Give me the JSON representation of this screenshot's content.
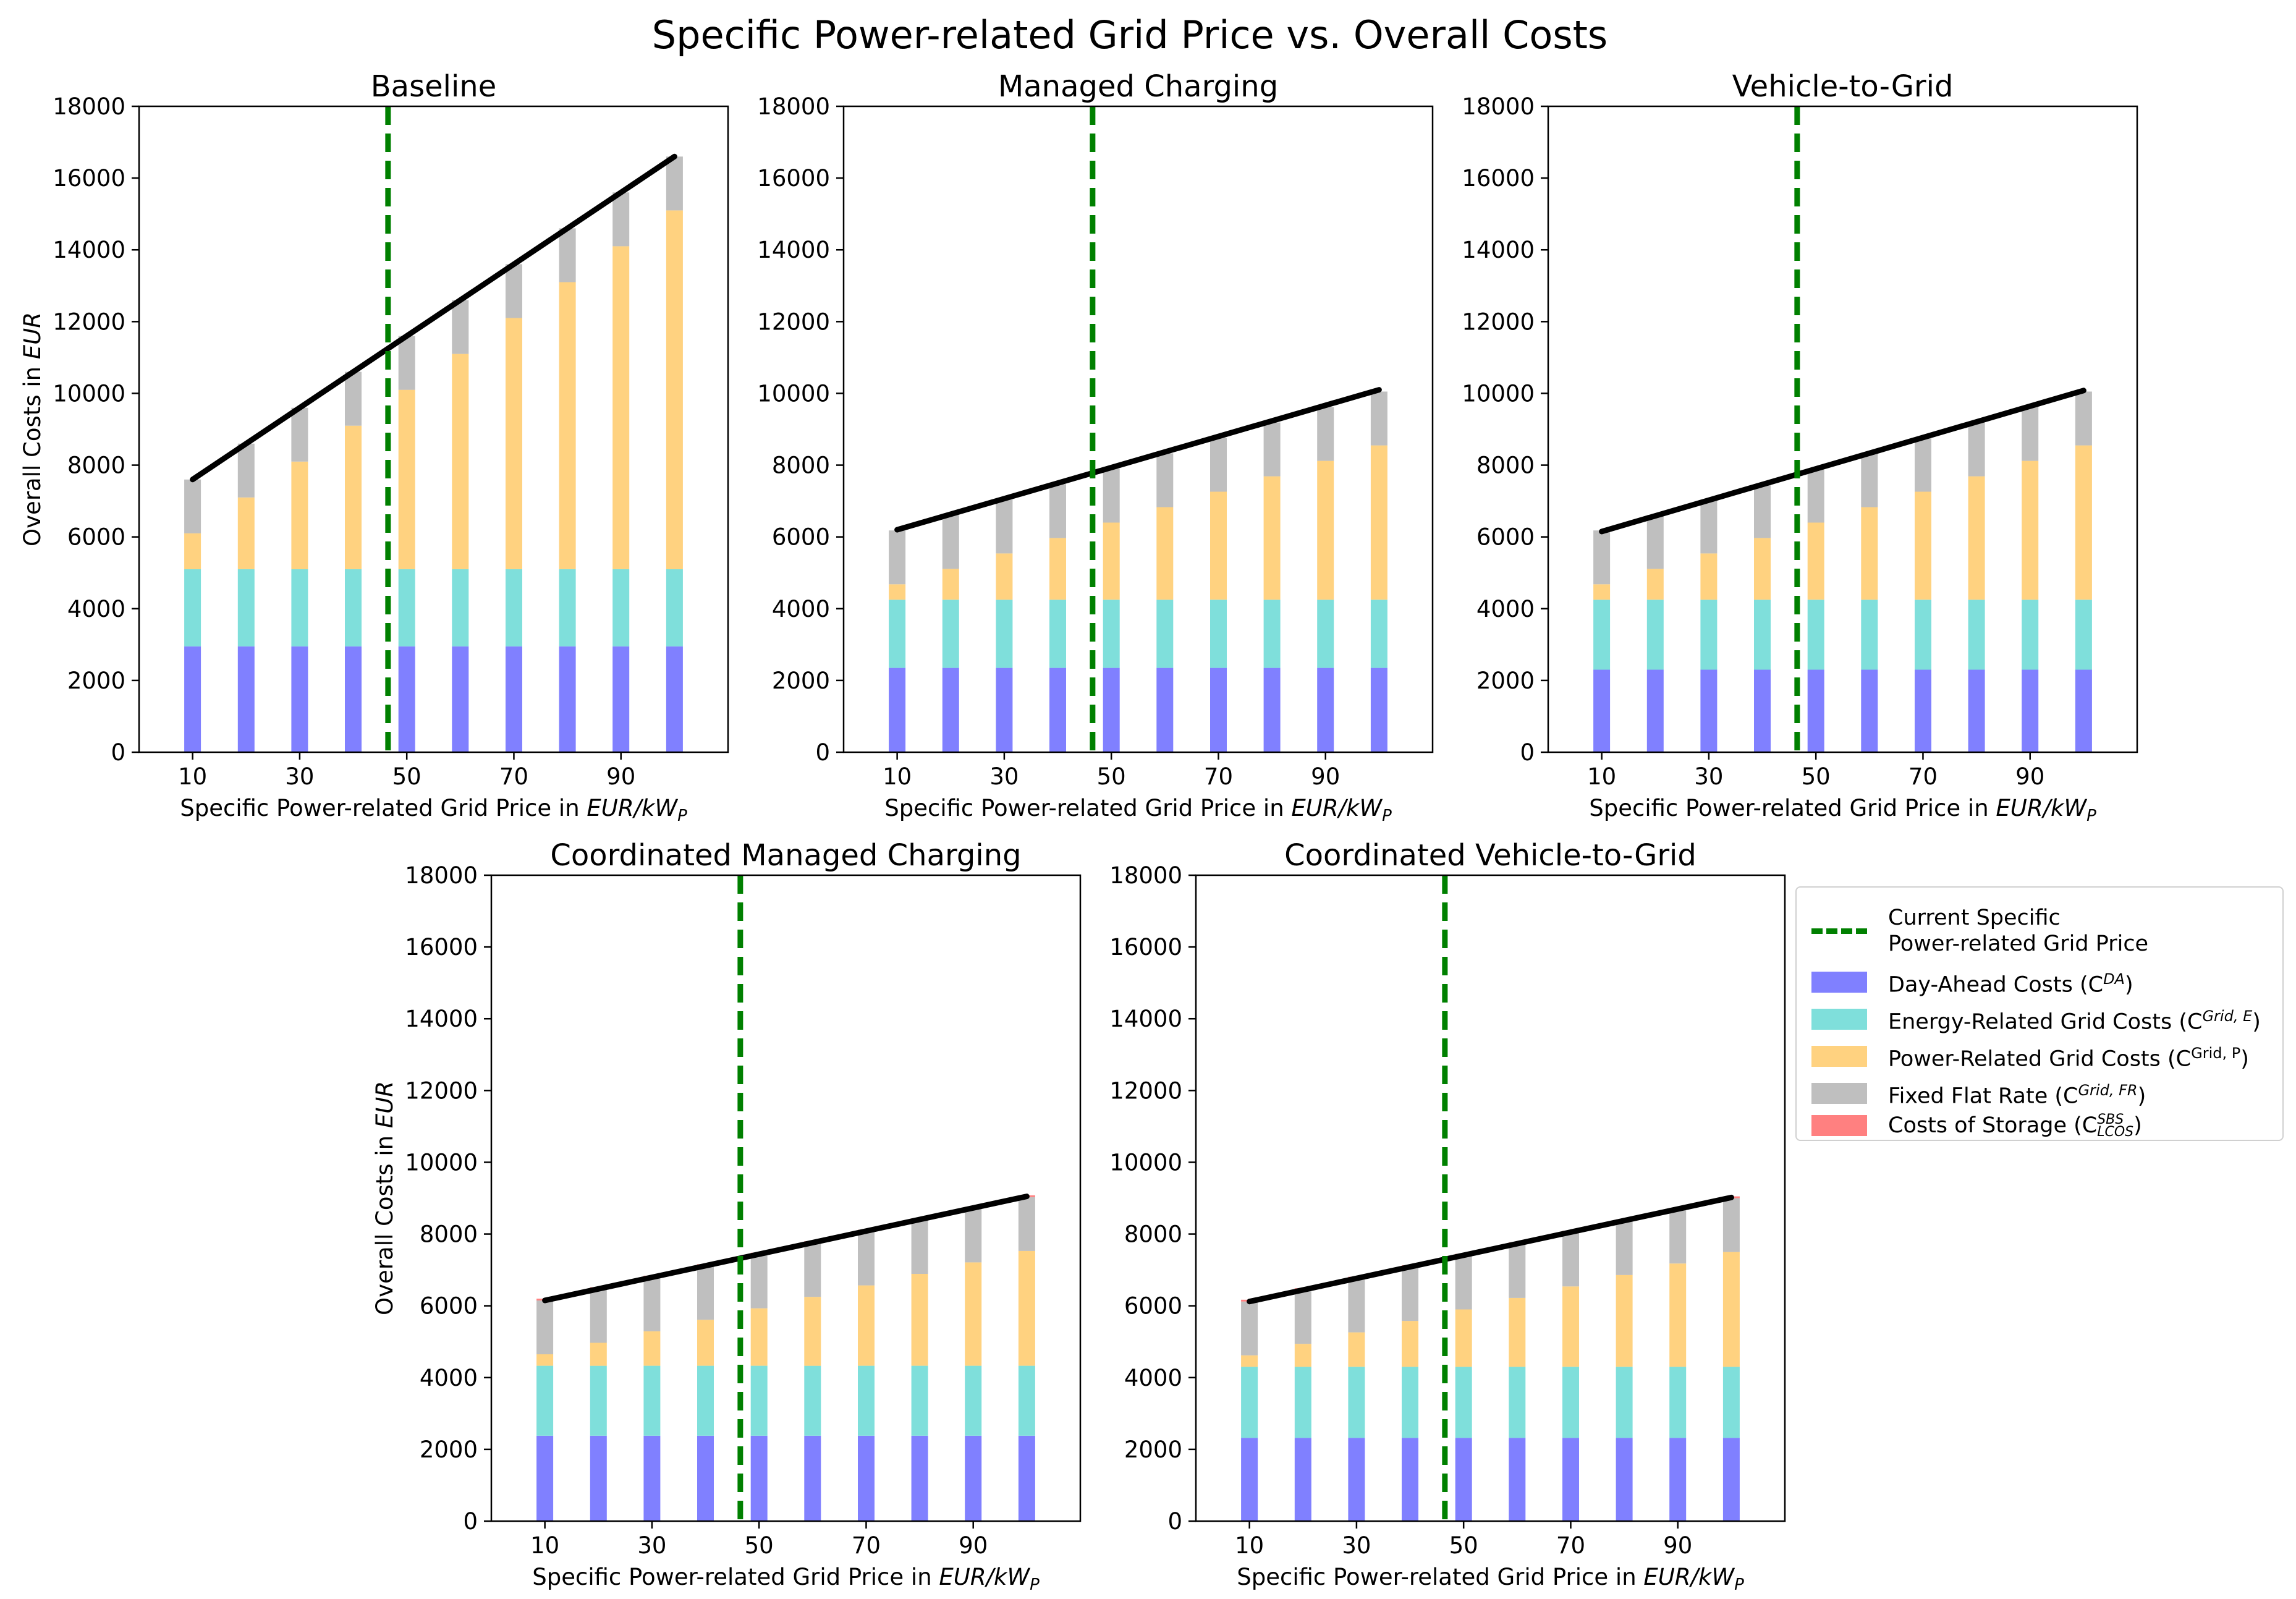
{
  "figure_title": "Specific Power-related Grid Price vs. Overall Costs",
  "colors": {
    "day_ahead": "#8080ff",
    "energy_grid": "#7fdfdb",
    "power_grid": "#ffd280",
    "fixed_flat": "#bfbfbf",
    "storage": "#ff8080",
    "total_line": "#000000",
    "current_price_line": "#008000"
  },
  "legend": {
    "current_price_line1": "Current Specific",
    "current_price_line2": "Power-related Grid Price",
    "day_ahead": "Day-Ahead Costs (C",
    "day_ahead_sup": "DA",
    "energy_grid": "Energy-Related Grid Costs (C",
    "energy_grid_sup": "Grid, E",
    "power_grid": "Power-Related Grid Costs (C",
    "power_grid_sup": "Grid, P",
    "fixed_flat": "Fixed Flat Rate (C",
    "fixed_flat_sup": "Grid, FR",
    "storage": "Costs of Storage (C",
    "storage_sup": "SBS",
    "storage_sub": "LCOS"
  },
  "chart_data": [
    {
      "type": "bar",
      "title": "Baseline",
      "xlabel_prefix": "Specific Power-related Grid Price in ",
      "xlabel_unit": "EUR/kW",
      "xlabel_unit_sub": "P",
      "ylabel_prefix": "Overall Costs in ",
      "ylabel_unit": "EUR",
      "x": [
        10,
        20,
        30,
        40,
        50,
        60,
        70,
        80,
        90,
        100
      ],
      "xticks": [
        "10",
        "30",
        "50",
        "70",
        "90"
      ],
      "yticks": [
        "0",
        "2000",
        "4000",
        "6000",
        "8000",
        "10000",
        "12000",
        "14000",
        "16000",
        "18000"
      ],
      "ylim": [
        0,
        18000
      ],
      "current_price": 46.5,
      "series": [
        {
          "name": "Day-Ahead Costs",
          "values": [
            2950,
            2950,
            2950,
            2950,
            2950,
            2950,
            2950,
            2950,
            2950,
            2950
          ]
        },
        {
          "name": "Energy-Related Grid Costs",
          "values": [
            2150,
            2150,
            2150,
            2150,
            2150,
            2150,
            2150,
            2150,
            2150,
            2150
          ]
        },
        {
          "name": "Power-Related Grid Costs",
          "values": [
            1000,
            2000,
            3000,
            4000,
            5000,
            6000,
            7000,
            8000,
            9000,
            10000
          ]
        },
        {
          "name": "Fixed Flat Rate",
          "values": [
            1500,
            1500,
            1500,
            1500,
            1500,
            1500,
            1500,
            1500,
            1500,
            1500
          ]
        },
        {
          "name": "Costs of Storage",
          "values": [
            0,
            0,
            0,
            0,
            0,
            0,
            0,
            0,
            0,
            0
          ]
        }
      ],
      "total_line": [
        7600,
        16600
      ]
    },
    {
      "type": "bar",
      "title": "Managed Charging",
      "xlabel_prefix": "Specific Power-related Grid Price in ",
      "xlabel_unit": "EUR/kW",
      "xlabel_unit_sub": "P",
      "ylabel_prefix": "",
      "ylabel_unit": "",
      "x": [
        10,
        20,
        30,
        40,
        50,
        60,
        70,
        80,
        90,
        100
      ],
      "xticks": [
        "10",
        "30",
        "50",
        "70",
        "90"
      ],
      "yticks": [
        "0",
        "2000",
        "4000",
        "6000",
        "8000",
        "10000",
        "12000",
        "14000",
        "16000",
        "18000"
      ],
      "ylim": [
        0,
        18000
      ],
      "current_price": 46.5,
      "series": [
        {
          "name": "Day-Ahead Costs",
          "values": [
            2350,
            2350,
            2350,
            2350,
            2350,
            2350,
            2350,
            2350,
            2350,
            2350
          ]
        },
        {
          "name": "Energy-Related Grid Costs",
          "values": [
            1900,
            1900,
            1900,
            1900,
            1900,
            1900,
            1900,
            1900,
            1900,
            1900
          ]
        },
        {
          "name": "Power-Related Grid Costs",
          "values": [
            430,
            860,
            1290,
            1720,
            2150,
            2580,
            3010,
            3440,
            3870,
            4300
          ]
        },
        {
          "name": "Fixed Flat Rate",
          "values": [
            1500,
            1500,
            1500,
            1500,
            1500,
            1500,
            1500,
            1500,
            1500,
            1500
          ]
        },
        {
          "name": "Costs of Storage",
          "values": [
            0,
            0,
            0,
            0,
            0,
            0,
            0,
            0,
            0,
            0
          ]
        }
      ],
      "total_line": [
        6200,
        10100
      ]
    },
    {
      "type": "bar",
      "title": "Vehicle-to-Grid",
      "xlabel_prefix": "Specific Power-related Grid Price in ",
      "xlabel_unit": "EUR/kW",
      "xlabel_unit_sub": "P",
      "ylabel_prefix": "",
      "ylabel_unit": "",
      "x": [
        10,
        20,
        30,
        40,
        50,
        60,
        70,
        80,
        90,
        100
      ],
      "xticks": [
        "10",
        "30",
        "50",
        "70",
        "90"
      ],
      "yticks": [
        "0",
        "2000",
        "4000",
        "6000",
        "8000",
        "10000",
        "12000",
        "14000",
        "16000",
        "18000"
      ],
      "ylim": [
        0,
        18000
      ],
      "current_price": 46.5,
      "series": [
        {
          "name": "Day-Ahead Costs",
          "values": [
            2300,
            2300,
            2300,
            2300,
            2300,
            2300,
            2300,
            2300,
            2300,
            2300
          ]
        },
        {
          "name": "Energy-Related Grid Costs",
          "values": [
            1950,
            1950,
            1950,
            1950,
            1950,
            1950,
            1950,
            1950,
            1950,
            1950
          ]
        },
        {
          "name": "Power-Related Grid Costs",
          "values": [
            430,
            860,
            1290,
            1720,
            2150,
            2580,
            3010,
            3440,
            3870,
            4300
          ]
        },
        {
          "name": "Fixed Flat Rate",
          "values": [
            1500,
            1500,
            1500,
            1500,
            1500,
            1500,
            1500,
            1500,
            1500,
            1500
          ]
        },
        {
          "name": "Costs of Storage",
          "values": [
            0,
            0,
            0,
            0,
            0,
            0,
            0,
            0,
            0,
            0
          ]
        }
      ],
      "total_line": [
        6150,
        10080
      ]
    },
    {
      "type": "bar",
      "title": "Coordinated Managed Charging",
      "xlabel_prefix": "Specific Power-related Grid Price in ",
      "xlabel_unit": "EUR/kW",
      "xlabel_unit_sub": "P",
      "ylabel_prefix": "Overall Costs in ",
      "ylabel_unit": "EUR",
      "x": [
        10,
        20,
        30,
        40,
        50,
        60,
        70,
        80,
        90,
        100
      ],
      "xticks": [
        "10",
        "30",
        "50",
        "70",
        "90"
      ],
      "yticks": [
        "0",
        "2000",
        "4000",
        "6000",
        "8000",
        "10000",
        "12000",
        "14000",
        "16000",
        "18000"
      ],
      "ylim": [
        0,
        18000
      ],
      "current_price": 46.5,
      "series": [
        {
          "name": "Day-Ahead Costs",
          "values": [
            2380,
            2380,
            2380,
            2380,
            2380,
            2380,
            2380,
            2380,
            2380,
            2380
          ]
        },
        {
          "name": "Energy-Related Grid Costs",
          "values": [
            1950,
            1950,
            1950,
            1950,
            1950,
            1950,
            1950,
            1950,
            1950,
            1950
          ]
        },
        {
          "name": "Power-Related Grid Costs",
          "values": [
            320,
            640,
            960,
            1280,
            1600,
            1920,
            2240,
            2560,
            2880,
            3200
          ]
        },
        {
          "name": "Fixed Flat Rate",
          "values": [
            1500,
            1500,
            1500,
            1500,
            1500,
            1500,
            1500,
            1500,
            1500,
            1500
          ]
        },
        {
          "name": "Costs of Storage",
          "values": [
            50,
            50,
            50,
            50,
            50,
            50,
            50,
            50,
            50,
            50
          ]
        }
      ],
      "total_line": [
        6150,
        9050
      ]
    },
    {
      "type": "bar",
      "title": "Coordinated Vehicle-to-Grid",
      "xlabel_prefix": "Specific Power-related Grid Price in ",
      "xlabel_unit": "EUR/kW",
      "xlabel_unit_sub": "P",
      "ylabel_prefix": "",
      "ylabel_unit": "",
      "x": [
        10,
        20,
        30,
        40,
        50,
        60,
        70,
        80,
        90,
        100
      ],
      "xticks": [
        "10",
        "30",
        "50",
        "70",
        "90"
      ],
      "yticks": [
        "0",
        "2000",
        "4000",
        "6000",
        "8000",
        "10000",
        "12000",
        "14000",
        "16000",
        "18000"
      ],
      "ylim": [
        0,
        18000
      ],
      "current_price": 46.5,
      "series": [
        {
          "name": "Day-Ahead Costs",
          "values": [
            2320,
            2320,
            2320,
            2320,
            2320,
            2320,
            2320,
            2320,
            2320,
            2320
          ]
        },
        {
          "name": "Energy-Related Grid Costs",
          "values": [
            1980,
            1980,
            1980,
            1980,
            1980,
            1980,
            1980,
            1980,
            1980,
            1980
          ]
        },
        {
          "name": "Power-Related Grid Costs",
          "values": [
            320,
            640,
            960,
            1280,
            1600,
            1920,
            2240,
            2560,
            2880,
            3200
          ]
        },
        {
          "name": "Fixed Flat Rate",
          "values": [
            1500,
            1500,
            1500,
            1500,
            1500,
            1500,
            1500,
            1500,
            1500,
            1500
          ]
        },
        {
          "name": "Costs of Storage",
          "values": [
            50,
            50,
            50,
            50,
            50,
            50,
            50,
            50,
            50,
            50
          ]
        }
      ],
      "total_line": [
        6120,
        9020
      ]
    }
  ]
}
